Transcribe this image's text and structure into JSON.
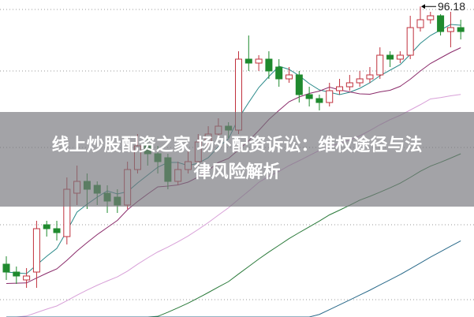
{
  "title_line1": "线上炒股配资之家 场外配资诉讼：维权途径与法",
  "title_line2": "律风险解析",
  "chart_data": {
    "type": "candlestick",
    "ylim": [
      56.8,
      97.0
    ],
    "grid": true,
    "max_label": "96.18",
    "max_value": 96.18,
    "colors": {
      "up": "#c0303c",
      "down": "#1f8a2e",
      "ma_short": "#2a8a8a",
      "ma_mid": "#8a2a6a",
      "ma_long": "#d8a0d8",
      "ma_longer": "#2a7a3a",
      "ma_longest": "#2a6a8a"
    },
    "candles": [
      [
        63.5,
        64.5,
        61.5,
        62.5
      ],
      [
        62.5,
        63.2,
        61.0,
        62.0
      ],
      [
        61.5,
        63.0,
        60.5,
        62.0
      ],
      [
        62.5,
        69.0,
        60.5,
        68.0
      ],
      [
        68.5,
        69.0,
        67.0,
        68.0
      ],
      [
        68.0,
        69.0,
        66.5,
        67.5
      ],
      [
        67.0,
        74.5,
        66.0,
        73.0
      ],
      [
        72.5,
        76.0,
        71.0,
        74.0
      ],
      [
        74.0,
        75.0,
        70.5,
        73.0
      ],
      [
        73.5,
        74.0,
        71.0,
        72.5
      ],
      [
        72.5,
        73.5,
        70.0,
        71.5
      ],
      [
        72.0,
        73.0,
        70.0,
        71.0
      ],
      [
        71.0,
        76.5,
        70.5,
        75.5
      ],
      [
        75.5,
        80.0,
        75.0,
        78.5
      ],
      [
        78.5,
        79.5,
        76.0,
        77.5
      ],
      [
        77.5,
        78.5,
        75.0,
        76.5
      ],
      [
        77.0,
        77.5,
        73.0,
        74.0
      ],
      [
        74.0,
        76.5,
        73.5,
        75.5
      ],
      [
        75.5,
        78.0,
        75.0,
        76.5
      ],
      [
        76.5,
        80.0,
        76.0,
        79.0
      ],
      [
        79.0,
        81.0,
        78.5,
        80.0
      ],
      [
        80.0,
        82.0,
        79.5,
        81.0
      ],
      [
        81.0,
        81.5,
        79.5,
        80.5
      ],
      [
        80.5,
        90.5,
        80.0,
        89.5
      ],
      [
        89.5,
        92.5,
        88.0,
        89.0
      ],
      [
        89.0,
        90.0,
        88.0,
        89.5
      ],
      [
        89.5,
        90.5,
        87.0,
        88.0
      ],
      [
        88.5,
        89.5,
        86.0,
        87.0
      ],
      [
        87.0,
        88.5,
        86.5,
        87.5
      ],
      [
        87.5,
        88.0,
        84.0,
        85.0
      ],
      [
        85.0,
        86.0,
        83.5,
        84.5
      ],
      [
        84.5,
        85.0,
        83.0,
        84.0
      ],
      [
        84.0,
        86.5,
        83.5,
        85.5
      ],
      [
        85.5,
        87.0,
        85.0,
        86.0
      ],
      [
        86.0,
        87.5,
        85.5,
        86.5
      ],
      [
        86.5,
        88.0,
        86.0,
        87.0
      ],
      [
        87.0,
        88.5,
        86.5,
        87.5
      ],
      [
        87.5,
        91.0,
        87.0,
        90.0
      ],
      [
        90.0,
        90.5,
        88.5,
        89.5
      ],
      [
        89.5,
        90.5,
        89.0,
        90.0
      ],
      [
        90.0,
        95.0,
        89.5,
        93.5
      ],
      [
        93.5,
        96.18,
        93.0,
        94.5
      ],
      [
        94.5,
        95.5,
        94.0,
        95.0
      ],
      [
        95.0,
        95.2,
        92.5,
        93.0
      ],
      [
        93.0,
        95.5,
        91.0,
        93.5
      ],
      [
        93.5,
        94.5,
        92.0,
        93.0
      ]
    ]
  }
}
